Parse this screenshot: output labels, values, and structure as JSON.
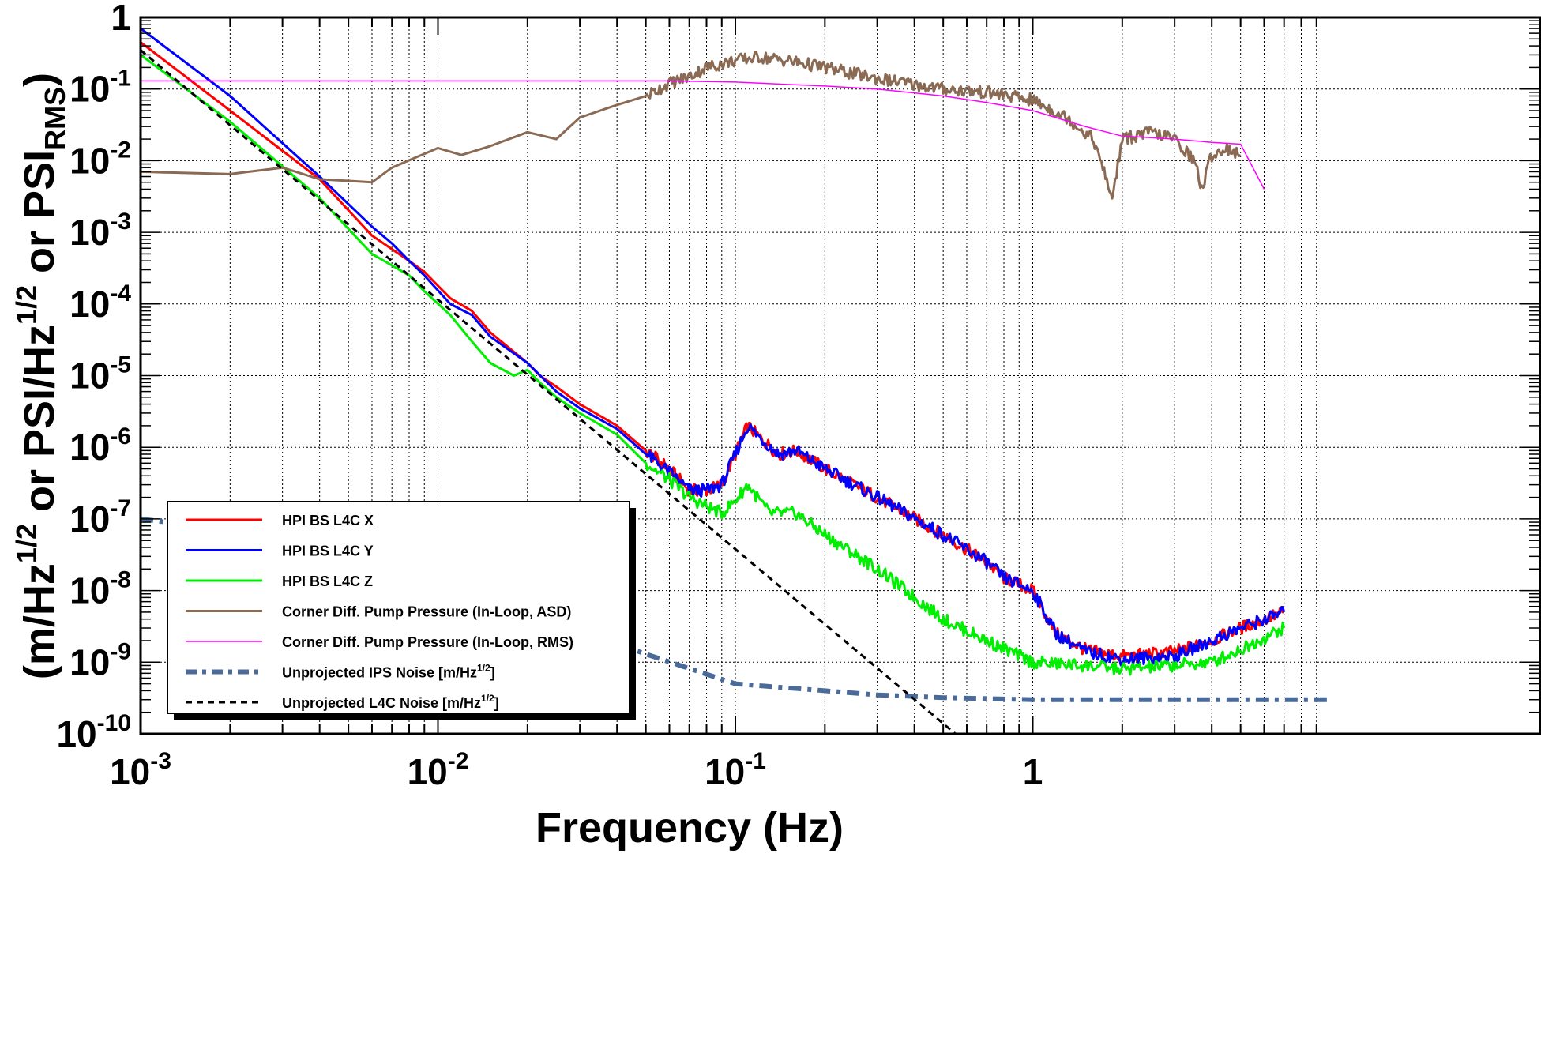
{
  "chart_data": {
    "type": "line",
    "xscale": "log",
    "yscale": "log",
    "xlim": [
      0.001,
      10
    ],
    "ylim": [
      1e-10,
      1
    ],
    "grid": true,
    "legend_position": "bottom-left",
    "xlabel": "Frequency (Hz)",
    "ylabel_parts": {
      "open": "(m/Hz",
      "sup1": "1/2",
      "mid": " or PSI/Hz",
      "sup2": "1/2",
      "tail": " or PSI",
      "sub": "RMS",
      "close": ")"
    },
    "x_ticks": [
      {
        "value": 0.001,
        "base": "10",
        "exp": "-3"
      },
      {
        "value": 0.01,
        "base": "10",
        "exp": "-2"
      },
      {
        "value": 0.1,
        "base": "10",
        "exp": "-1"
      },
      {
        "value": 1,
        "base": "1",
        "exp": ""
      }
    ],
    "y_ticks": [
      {
        "value": 1,
        "base": "1",
        "exp": ""
      },
      {
        "value": 0.1,
        "base": "10",
        "exp": "-1"
      },
      {
        "value": 0.01,
        "base": "10",
        "exp": "-2"
      },
      {
        "value": 0.001,
        "base": "10",
        "exp": "-3"
      },
      {
        "value": 0.0001,
        "base": "10",
        "exp": "-4"
      },
      {
        "value": 1e-05,
        "base": "10",
        "exp": "-5"
      },
      {
        "value": 1e-06,
        "base": "10",
        "exp": "-6"
      },
      {
        "value": 1e-07,
        "base": "10",
        "exp": "-7"
      },
      {
        "value": 1e-08,
        "base": "10",
        "exp": "-8"
      },
      {
        "value": 1e-09,
        "base": "10",
        "exp": "-9"
      },
      {
        "value": 1e-10,
        "base": "10",
        "exp": "-10"
      }
    ],
    "series": [
      {
        "name": "HPI BS L4C X",
        "color": "#ff0000",
        "style": "solid",
        "x": [
          0.001,
          0.002,
          0.004,
          0.006,
          0.008,
          0.009,
          0.011,
          0.013,
          0.015,
          0.02,
          0.022,
          0.025,
          0.03,
          0.04,
          0.05,
          0.06,
          0.07,
          0.08,
          0.09,
          0.1,
          0.11,
          0.12,
          0.14,
          0.16,
          0.2,
          0.3,
          0.5,
          0.7,
          0.8,
          1.0,
          1.2,
          1.5,
          2.0,
          3.0,
          4.0,
          5.0,
          7.0
        ],
        "y": [
          0.45,
          0.05,
          0.0055,
          0.0009,
          0.0004,
          0.00028,
          0.00012,
          8e-05,
          4e-05,
          1.5e-05,
          1e-05,
          7e-06,
          4e-06,
          2e-06,
          9e-07,
          5e-07,
          2.5e-07,
          2.5e-07,
          3e-07,
          8e-07,
          2e-06,
          1.4e-06,
          8e-07,
          9e-07,
          5e-07,
          2e-07,
          6e-08,
          2.5e-08,
          1.5e-08,
          1e-08,
          2.5e-09,
          1.5e-09,
          1.2e-09,
          1.4e-09,
          2e-09,
          3e-09,
          5e-09
        ]
      },
      {
        "name": "HPI BS L4C Y",
        "color": "#0000ff",
        "style": "solid",
        "x": [
          0.001,
          0.002,
          0.004,
          0.006,
          0.007,
          0.008,
          0.009,
          0.011,
          0.013,
          0.015,
          0.02,
          0.025,
          0.03,
          0.04,
          0.05,
          0.06,
          0.07,
          0.08,
          0.09,
          0.1,
          0.11,
          0.12,
          0.14,
          0.16,
          0.2,
          0.3,
          0.5,
          0.7,
          0.8,
          1.0,
          1.2,
          1.5,
          2.0,
          3.0,
          4.0,
          5.0,
          7.0
        ],
        "y": [
          0.7,
          0.08,
          0.006,
          0.0012,
          0.0007,
          0.0004,
          0.00025,
          0.0001,
          7e-05,
          3.5e-05,
          1.5e-05,
          6e-06,
          3.5e-06,
          1.8e-06,
          8e-07,
          4.5e-07,
          2.5e-07,
          2.5e-07,
          3e-07,
          8e-07,
          2e-06,
          1.4e-06,
          8e-07,
          9e-07,
          5e-07,
          2e-07,
          6e-08,
          2.5e-08,
          1.5e-08,
          1e-08,
          2.5e-09,
          1.4e-09,
          1.1e-09,
          1.2e-09,
          2e-09,
          3e-09,
          5e-09
        ]
      },
      {
        "name": "HPI BS L4C Z",
        "color": "#00ee00",
        "style": "solid",
        "x": [
          0.001,
          0.002,
          0.004,
          0.006,
          0.008,
          0.009,
          0.011,
          0.013,
          0.015,
          0.018,
          0.02,
          0.022,
          0.025,
          0.03,
          0.04,
          0.05,
          0.06,
          0.07,
          0.08,
          0.09,
          0.1,
          0.11,
          0.13,
          0.16,
          0.2,
          0.3,
          0.5,
          0.7,
          1.0,
          1.5,
          2.0,
          3.0,
          4.0,
          5.0,
          7.0
        ],
        "y": [
          0.3,
          0.035,
          0.003,
          0.0005,
          0.00025,
          0.00015,
          7e-05,
          3e-05,
          1.5e-05,
          1e-05,
          1.2e-05,
          8e-06,
          5e-06,
          3e-06,
          1.5e-06,
          6e-07,
          3.5e-07,
          2e-07,
          1.5e-07,
          1.2e-07,
          1.8e-07,
          3e-07,
          1.2e-07,
          1.2e-07,
          6e-08,
          2e-08,
          4e-09,
          2e-09,
          1e-09,
          9e-10,
          8e-10,
          9e-10,
          1e-09,
          1.5e-09,
          3e-09
        ]
      },
      {
        "name": "Corner Diff. Pump Pressure (In-Loop, ASD)",
        "color": "#8b6a54",
        "style": "solid",
        "x": [
          0.001,
          0.002,
          0.003,
          0.004,
          0.006,
          0.007,
          0.01,
          0.012,
          0.015,
          0.02,
          0.025,
          0.03,
          0.04,
          0.05,
          0.06,
          0.07,
          0.08,
          0.1,
          0.12,
          0.15,
          0.2,
          0.3,
          0.5,
          0.7,
          1.0,
          1.3,
          1.6,
          1.85,
          2.0,
          2.5,
          3.0,
          3.5,
          3.7,
          4.0,
          4.5,
          5.0
        ],
        "y": [
          0.007,
          0.0065,
          0.008,
          0.0055,
          0.005,
          0.008,
          0.015,
          0.012,
          0.016,
          0.025,
          0.02,
          0.04,
          0.06,
          0.08,
          0.12,
          0.15,
          0.2,
          0.25,
          0.28,
          0.25,
          0.2,
          0.14,
          0.1,
          0.09,
          0.07,
          0.04,
          0.02,
          0.003,
          0.02,
          0.025,
          0.02,
          0.01,
          0.004,
          0.012,
          0.015,
          0.012
        ]
      },
      {
        "name": "Corner Diff. Pump Pressure (In-Loop, RMS)",
        "color": "#ff00ff",
        "style": "thin",
        "x": [
          0.001,
          0.01,
          0.06,
          0.1,
          0.2,
          0.3,
          0.5,
          0.7,
          1.0,
          1.5,
          2.0,
          2.5,
          3.0,
          4.0,
          5.0,
          6.0
        ],
        "y": [
          0.13,
          0.13,
          0.13,
          0.125,
          0.11,
          0.1,
          0.08,
          0.065,
          0.05,
          0.03,
          0.022,
          0.021,
          0.02,
          0.018,
          0.017,
          0.004
        ]
      },
      {
        "name": "Unprojected IPS Noise [m/Hz^1/2]",
        "color": "#4a6a9a",
        "style": "dashdot",
        "x": [
          0.001,
          0.002,
          0.003,
          0.005,
          0.01,
          0.02,
          0.05,
          0.1,
          0.2,
          0.3,
          0.5,
          1.0,
          2.0,
          5.0,
          10.0
        ],
        "y": [
          1e-07,
          7e-08,
          4e-08,
          2e-08,
          1e-08,
          5e-09,
          1.3e-09,
          5e-10,
          4e-10,
          3.5e-10,
          3.2e-10,
          3e-10,
          3e-10,
          3e-10,
          3e-10
        ]
      },
      {
        "name": "Unprojected L4C Noise [m/Hz^1/2]",
        "color": "#000000",
        "style": "dashed",
        "x": [
          0.001,
          0.55
        ],
        "y": [
          0.35,
          1e-10
        ]
      }
    ],
    "legend": [
      {
        "text": "HPI BS L4C X",
        "sup": "",
        "tail": ""
      },
      {
        "text": "HPI BS L4C Y",
        "sup": "",
        "tail": ""
      },
      {
        "text": "HPI BS L4C Z",
        "sup": "",
        "tail": ""
      },
      {
        "text": "Corner Diff. Pump Pressure (In-Loop, ASD)",
        "sup": "",
        "tail": ""
      },
      {
        "text": "Corner Diff. Pump Pressure (In-Loop, RMS)",
        "sup": "",
        "tail": ""
      },
      {
        "text": "Unprojected IPS Noise [m/Hz",
        "sup": "1/2",
        "tail": "]"
      },
      {
        "text": "Unprojected L4C Noise [m/Hz",
        "sup": "1/2",
        "tail": "]"
      }
    ]
  }
}
